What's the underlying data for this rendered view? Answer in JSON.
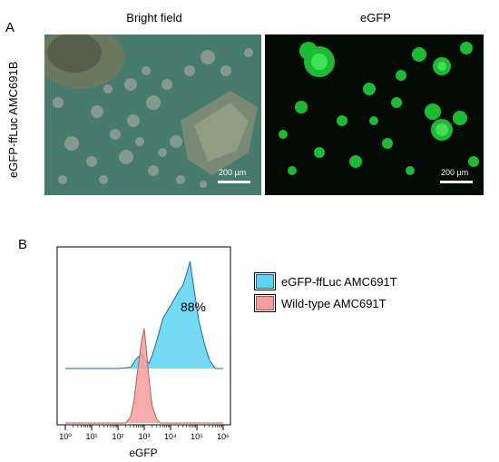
{
  "panel_a": {
    "letter": "A",
    "row_label": "eGFP-ffLuc AMC691B",
    "images": [
      {
        "title": "Bright field",
        "scale_bar": "200 µm"
      },
      {
        "title": "eGFP",
        "scale_bar": "200 µm"
      }
    ]
  },
  "panel_b": {
    "letter": "B",
    "percent_label": "88%",
    "x_ticks": [
      "10⁰",
      "10¹",
      "10²",
      "10³",
      "10⁴",
      "10⁵",
      "10⁶"
    ],
    "xlabel": "eGFP",
    "legend": [
      {
        "label": "eGFP-ffLuc AMC691T",
        "color": "#5cd4f2"
      },
      {
        "label": "Wild-type AMC691T",
        "color": "#f59d9d"
      }
    ]
  },
  "chart_data": {
    "type": "area",
    "title": "",
    "xlabel": "eGFP",
    "ylabel": "",
    "x_scale": "log",
    "xlim": [
      1,
      1000000
    ],
    "series": [
      {
        "name": "eGFP-ffLuc AMC691T",
        "color": "#5cd4f2",
        "x": [
          1,
          100,
          300,
          500,
          800,
          1000,
          1500,
          2000,
          3000,
          5000,
          8000,
          12000,
          20000,
          30000,
          40000,
          55000,
          80000,
          120000,
          200000,
          300000,
          500000,
          1000000
        ],
        "y": [
          0,
          0,
          1,
          9,
          14,
          8,
          5,
          12,
          26,
          46,
          55,
          62,
          72,
          78,
          88,
          100,
          72,
          44,
          22,
          8,
          0,
          0
        ]
      },
      {
        "name": "Wild-type AMC691T",
        "color": "#f59d9d",
        "x": [
          1,
          200,
          300,
          400,
          600,
          800,
          1000,
          1200,
          1500,
          2000,
          3000,
          4000,
          1000000
        ],
        "y": [
          0,
          0,
          6,
          22,
          62,
          88,
          100,
          78,
          48,
          18,
          4,
          0,
          0
        ]
      }
    ]
  }
}
